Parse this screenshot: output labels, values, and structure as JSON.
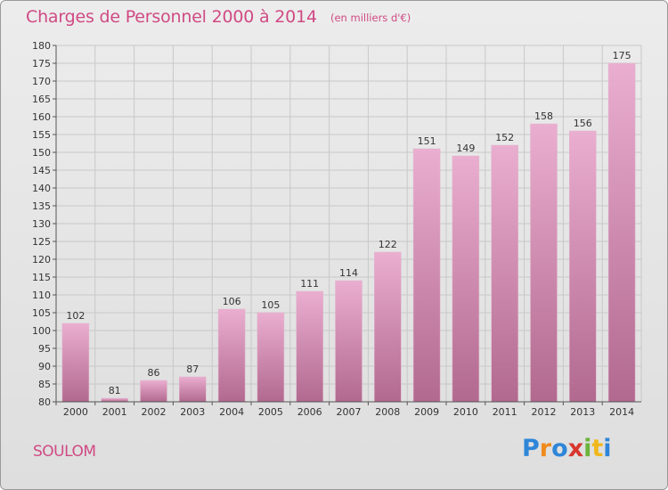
{
  "header": {
    "title": "Charges de Personnel 2000 à 2014",
    "unit": "(en milliers d'€)"
  },
  "footer": {
    "commune": "SOULOM",
    "logo_text": "Proxiti"
  },
  "colors": {
    "title": "#d04a84",
    "bar_top": "#eaaed0",
    "bar_bottom": "#b2698f",
    "grid": "#c8c8c8"
  },
  "chart_data": {
    "type": "bar",
    "title": "Charges de Personnel 2000 à 2014",
    "subtitle": "(en milliers d'€)",
    "xlabel": "",
    "ylabel": "",
    "categories": [
      "2000",
      "2001",
      "2002",
      "2003",
      "2004",
      "2005",
      "2006",
      "2007",
      "2008",
      "2009",
      "2010",
      "2011",
      "2012",
      "2013",
      "2014"
    ],
    "values": [
      102,
      81,
      86,
      87,
      106,
      105,
      111,
      114,
      122,
      151,
      149,
      152,
      158,
      156,
      175
    ],
    "ylim": [
      80,
      180
    ],
    "yticks": [
      80,
      85,
      90,
      95,
      100,
      105,
      110,
      115,
      120,
      125,
      130,
      135,
      140,
      145,
      150,
      155,
      160,
      165,
      170,
      175,
      180
    ],
    "grid": true,
    "legend": "none"
  }
}
